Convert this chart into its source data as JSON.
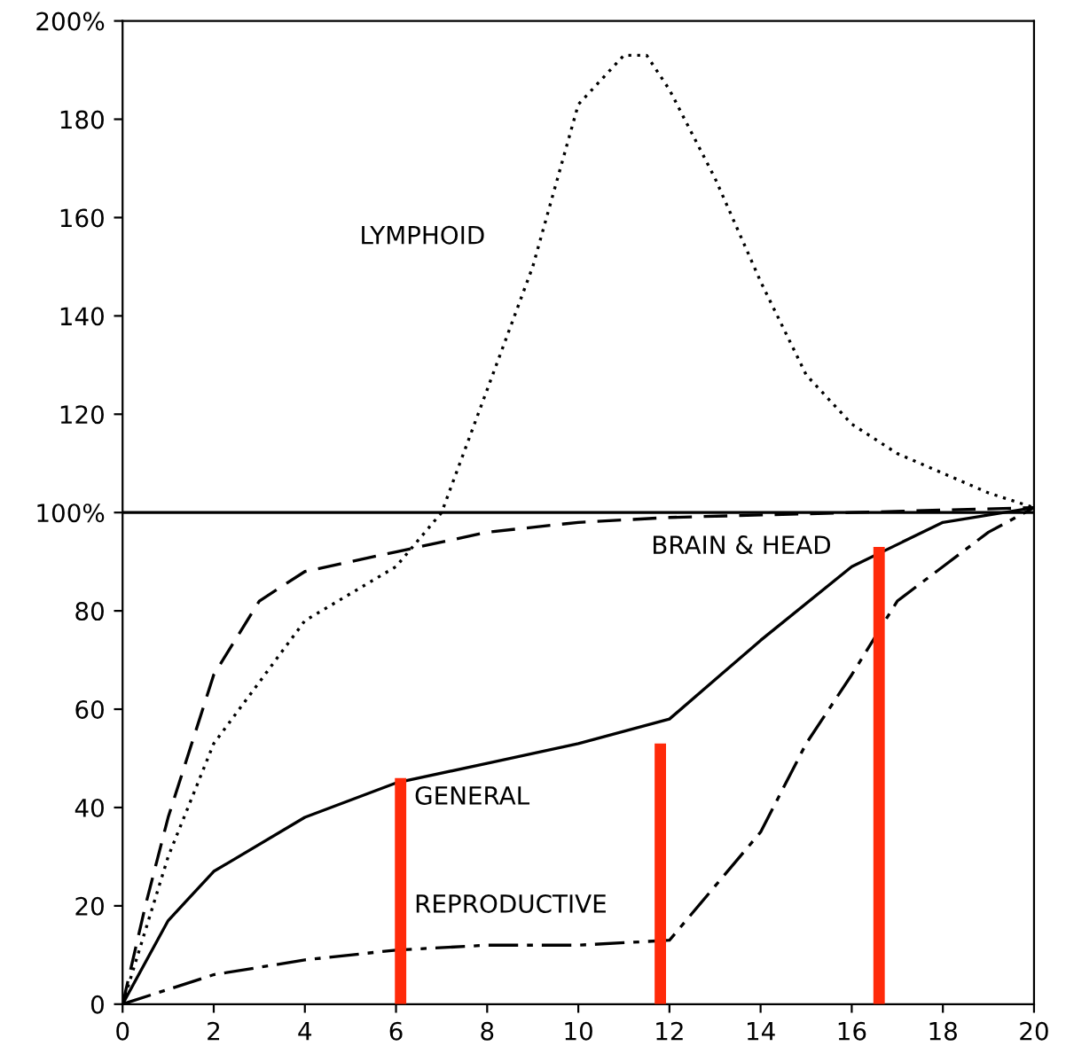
{
  "chart_data": {
    "type": "line",
    "xlim": [
      0,
      20
    ],
    "ylim": [
      0,
      200
    ],
    "xticks": [
      0,
      2,
      4,
      6,
      8,
      10,
      12,
      14,
      16,
      18,
      20
    ],
    "yticks": [
      0,
      20,
      40,
      60,
      80,
      {
        "value": 100,
        "label": "100%"
      },
      120,
      140,
      160,
      180,
      {
        "value": 200,
        "label": "200%"
      }
    ],
    "grid": false,
    "legend": false,
    "marker": "none",
    "ref_lines": [
      {
        "axis": "y",
        "value": 100,
        "color": "#000000",
        "line_style": "solid"
      }
    ],
    "series": [
      {
        "name": "LYMPHOID",
        "color": "#000000",
        "line_style": "dotted",
        "x": [
          0,
          0.5,
          1,
          2,
          4,
          6,
          7,
          8,
          9,
          10,
          11,
          11.5,
          12,
          13,
          14,
          15,
          16,
          17,
          18,
          19,
          20
        ],
        "values": [
          0,
          15,
          30,
          53,
          78,
          89,
          100,
          125,
          150,
          183,
          193,
          193,
          186,
          168,
          147,
          128,
          118,
          112,
          108,
          104,
          101
        ]
      },
      {
        "name": "BRAIN & HEAD",
        "color": "#000000",
        "line_style": "dashed",
        "x": [
          0,
          0.5,
          1,
          2,
          3,
          4,
          6,
          8,
          10,
          12,
          16,
          20
        ],
        "values": [
          0,
          20,
          38,
          67,
          82,
          88,
          92,
          96,
          98,
          99,
          100,
          101
        ]
      },
      {
        "name": "GENERAL",
        "color": "#000000",
        "line_style": "solid",
        "x": [
          0,
          1,
          2,
          4,
          6,
          8,
          10,
          12,
          14,
          16,
          18,
          20
        ],
        "values": [
          0,
          17,
          27,
          38,
          45,
          49,
          53,
          58,
          74,
          89,
          98,
          101
        ]
      },
      {
        "name": "REPRODUCTIVE",
        "color": "#000000",
        "line_style": "dashdot",
        "x": [
          0,
          2,
          4,
          6,
          8,
          10,
          12,
          13,
          14,
          15,
          16,
          17,
          18,
          19,
          20
        ],
        "values": [
          0,
          6,
          9,
          11,
          12,
          12,
          13,
          24,
          35,
          53,
          67,
          82,
          89,
          96,
          101
        ]
      },
      {
        "type": "bar",
        "color": "#ff2a0a",
        "x": [
          6.1,
          11.8,
          16.6
        ],
        "values": [
          46,
          53,
          93
        ]
      }
    ]
  }
}
